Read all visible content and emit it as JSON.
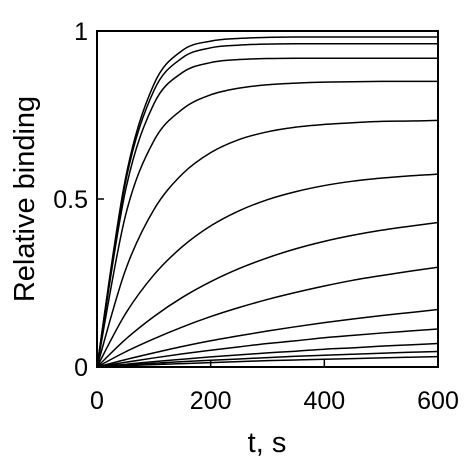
{
  "chart_data": {
    "type": "line",
    "title": "",
    "xlabel": "t, s",
    "ylabel": "Relative binding",
    "xlim": [
      0,
      600
    ],
    "ylim": [
      0,
      1
    ],
    "x_ticks": [
      "0",
      "200",
      "400",
      "600"
    ],
    "y_ticks": [
      "0",
      "0.5",
      "1"
    ],
    "grid": false,
    "legend": "none",
    "line_color": "#000000",
    "x": [
      0,
      50,
      100,
      150,
      200,
      250,
      300,
      350,
      400,
      450,
      500,
      550,
      600
    ],
    "series": [
      {
        "values": [
          0,
          0.56,
          0.841,
          0.942,
          0.97,
          0.978,
          0.981,
          0.982,
          0.982,
          0.982,
          0.982,
          0.982,
          0.982
        ]
      },
      {
        "values": [
          0,
          0.549,
          0.822,
          0.92,
          0.95,
          0.958,
          0.961,
          0.962,
          0.962,
          0.962,
          0.962,
          0.962,
          0.962
        ]
      },
      {
        "values": [
          0,
          0.524,
          0.783,
          0.876,
          0.906,
          0.915,
          0.918,
          0.919,
          0.919,
          0.919,
          0.919,
          0.919,
          0.919
        ]
      },
      {
        "values": [
          0,
          0.45,
          0.673,
          0.767,
          0.81,
          0.83,
          0.84,
          0.845,
          0.848,
          0.849,
          0.85,
          0.85,
          0.85
        ]
      },
      {
        "values": [
          0,
          0.288,
          0.468,
          0.574,
          0.638,
          0.677,
          0.7,
          0.714,
          0.722,
          0.727,
          0.731,
          0.732,
          0.734
        ]
      },
      {
        "values": [
          0,
          0.158,
          0.274,
          0.358,
          0.42,
          0.465,
          0.498,
          0.522,
          0.54,
          0.553,
          0.562,
          0.569,
          0.574
        ]
      },
      {
        "values": [
          0,
          0.082,
          0.15,
          0.207,
          0.254,
          0.293,
          0.325,
          0.352,
          0.374,
          0.392,
          0.407,
          0.419,
          0.43
        ]
      },
      {
        "values": [
          0,
          0.045,
          0.084,
          0.119,
          0.15,
          0.177,
          0.201,
          0.222,
          0.241,
          0.258,
          0.272,
          0.285,
          0.297
        ]
      },
      {
        "values": [
          0,
          0.022,
          0.042,
          0.061,
          0.078,
          0.093,
          0.107,
          0.12,
          0.132,
          0.143,
          0.153,
          0.162,
          0.171
        ]
      },
      {
        "values": [
          0,
          0.014,
          0.027,
          0.039,
          0.05,
          0.06,
          0.07,
          0.078,
          0.087,
          0.094,
          0.101,
          0.107,
          0.113
        ]
      },
      {
        "values": [
          0,
          0.008,
          0.016,
          0.023,
          0.03,
          0.036,
          0.042,
          0.047,
          0.053,
          0.057,
          0.062,
          0.066,
          0.07
        ]
      },
      {
        "values": [
          0,
          0.006,
          0.011,
          0.016,
          0.02,
          0.024,
          0.028,
          0.032,
          0.035,
          0.038,
          0.041,
          0.044,
          0.046
        ]
      },
      {
        "values": [
          0,
          0.004,
          0.007,
          0.01,
          0.013,
          0.016,
          0.019,
          0.021,
          0.023,
          0.025,
          0.027,
          0.029,
          0.031
        ]
      }
    ]
  }
}
